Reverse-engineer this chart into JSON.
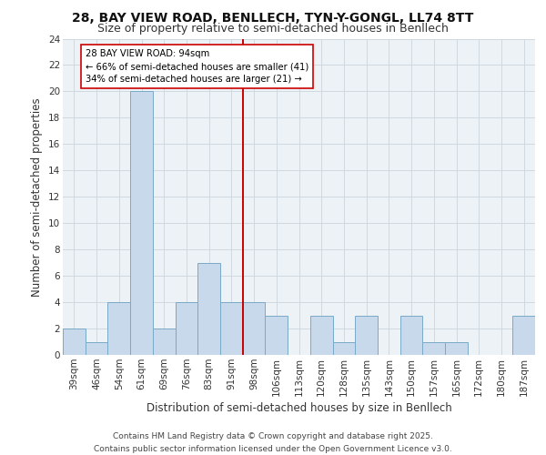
{
  "title_line1": "28, BAY VIEW ROAD, BENLLECH, TYN-Y-GONGL, LL74 8TT",
  "title_line2": "Size of property relative to semi-detached houses in Benllech",
  "xlabel": "Distribution of semi-detached houses by size in Benllech",
  "ylabel": "Number of semi-detached properties",
  "categories": [
    "39sqm",
    "46sqm",
    "54sqm",
    "61sqm",
    "69sqm",
    "76sqm",
    "83sqm",
    "91sqm",
    "98sqm",
    "106sqm",
    "113sqm",
    "120sqm",
    "128sqm",
    "135sqm",
    "143sqm",
    "150sqm",
    "157sqm",
    "165sqm",
    "172sqm",
    "180sqm",
    "187sqm"
  ],
  "values": [
    2,
    1,
    4,
    20,
    2,
    4,
    7,
    4,
    4,
    3,
    0,
    3,
    1,
    3,
    0,
    3,
    1,
    1,
    0,
    0,
    3
  ],
  "bar_color": "#c8d9eb",
  "bar_edge_color": "#7aaac8",
  "property_line_x": 7.5,
  "annotation_text": "28 BAY VIEW ROAD: 94sqm\n← 66% of semi-detached houses are smaller (41)\n34% of semi-detached houses are larger (21) →",
  "annotation_box_color": "#ffffff",
  "annotation_box_edge": "#cc0000",
  "vline_color": "#cc0000",
  "ylim": [
    0,
    24
  ],
  "yticks": [
    0,
    2,
    4,
    6,
    8,
    10,
    12,
    14,
    16,
    18,
    20,
    22,
    24
  ],
  "grid_color": "#d0d8e0",
  "background_color": "#edf2f7",
  "footer_text": "Contains HM Land Registry data © Crown copyright and database right 2025.\nContains public sector information licensed under the Open Government Licence v3.0.",
  "title_fontsize": 10,
  "subtitle_fontsize": 9,
  "axis_label_fontsize": 8.5,
  "tick_fontsize": 7.5,
  "footer_fontsize": 6.5
}
